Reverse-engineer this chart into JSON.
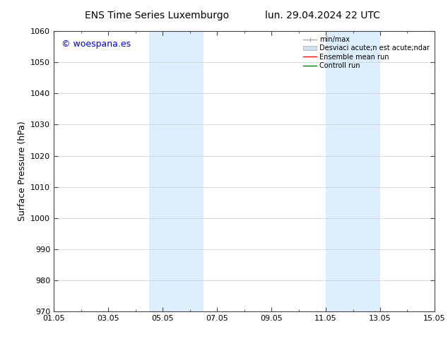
{
  "title_left": "ENS Time Series Luxemburgo",
  "title_right": "lun. 29.04.2024 22 UTC",
  "ylabel": "Surface Pressure (hPa)",
  "ylim": [
    970,
    1060
  ],
  "yticks": [
    970,
    980,
    990,
    1000,
    1010,
    1020,
    1030,
    1040,
    1050,
    1060
  ],
  "xticks_labels": [
    "01.05",
    "03.05",
    "05.05",
    "07.05",
    "09.05",
    "11.05",
    "13.05",
    "15.05"
  ],
  "xticks_pos": [
    0,
    2,
    4,
    6,
    8,
    10,
    12,
    14
  ],
  "xlim": [
    0,
    14
  ],
  "shaded_bands": [
    {
      "x_start": 3.5,
      "x_end": 5.5
    },
    {
      "x_start": 10.0,
      "x_end": 12.0
    }
  ],
  "watermark_text": "© woespana.es",
  "watermark_color": "#0000cc",
  "background_color": "#ffffff",
  "band_color": "#ddeeff",
  "grid_color": "#cccccc",
  "legend_entries": [
    {
      "label": "min/max",
      "color": "#aaaaaa",
      "lw": 1.0
    },
    {
      "label": "Desviaci acute;n est acute;ndar",
      "color": "#cce0f0",
      "lw": 6
    },
    {
      "label": "Ensemble mean run",
      "color": "#ff0000",
      "lw": 1.0
    },
    {
      "label": "Controll run",
      "color": "#008000",
      "lw": 1.0
    }
  ],
  "title_fontsize": 10,
  "ylabel_fontsize": 9,
  "tick_fontsize": 8,
  "watermark_fontsize": 9,
  "legend_fontsize": 7
}
